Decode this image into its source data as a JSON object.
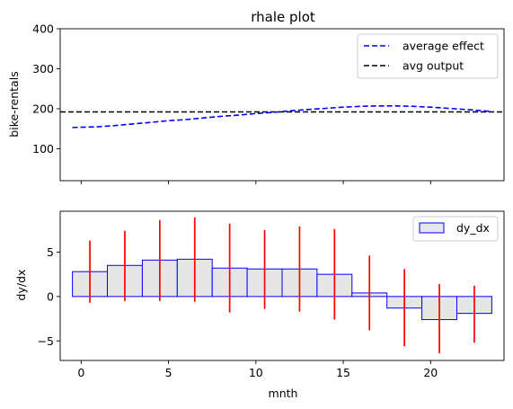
{
  "chart_data": [
    {
      "type": "line",
      "title": "rhale plot",
      "xlabel": "",
      "ylabel": "bike-rentals",
      "xlim": [
        -1.2,
        24.2
      ],
      "ylim": [
        20,
        400
      ],
      "xticks": [
        0,
        5,
        10,
        15,
        20
      ],
      "yticks": [
        100,
        200,
        300,
        400
      ],
      "show_xtick_labels": false,
      "grid": false,
      "legend": "top-right",
      "series": [
        {
          "name": "average effect",
          "style": "dashed",
          "color": "#0000ff",
          "x": [
            -0.5,
            1,
            2,
            3,
            4,
            5,
            6,
            7,
            8,
            9,
            10,
            11,
            12,
            13,
            14,
            15,
            16,
            17,
            18,
            19,
            20,
            21,
            22,
            23,
            23.5
          ],
          "y": [
            153,
            155,
            158,
            162,
            166,
            170,
            173,
            177,
            181,
            184,
            188,
            191,
            195,
            198,
            201,
            204,
            206,
            207,
            207,
            206,
            204,
            201,
            198,
            195,
            193
          ]
        },
        {
          "name": "avg output",
          "style": "dashed",
          "color": "#000000",
          "y_value": 192
        }
      ]
    },
    {
      "type": "bar",
      "title": "",
      "xlabel": "mnth",
      "ylabel": "dy/dx",
      "xlim": [
        -1.2,
        24.2
      ],
      "ylim": [
        -7.2,
        9.6
      ],
      "xticks": [
        0,
        5,
        10,
        15,
        20
      ],
      "yticks": [
        -5,
        0,
        5
      ],
      "grid": false,
      "legend": "top-right",
      "series": [
        {
          "name": "dy_dx",
          "fill": "#e6e6e6",
          "edge": "#0000ff",
          "bins": [
            {
              "x0": -0.5,
              "x1": 1.5,
              "value": 2.8
            },
            {
              "x0": 1.5,
              "x1": 3.5,
              "value": 3.5
            },
            {
              "x0": 3.5,
              "x1": 5.5,
              "value": 4.1
            },
            {
              "x0": 5.5,
              "x1": 7.5,
              "value": 4.2
            },
            {
              "x0": 7.5,
              "x1": 9.5,
              "value": 3.2
            },
            {
              "x0": 9.5,
              "x1": 11.5,
              "value": 3.1
            },
            {
              "x0": 11.5,
              "x1": 13.5,
              "value": 3.1
            },
            {
              "x0": 13.5,
              "x1": 15.5,
              "value": 2.5
            },
            {
              "x0": 15.5,
              "x1": 17.5,
              "value": 0.4
            },
            {
              "x0": 17.5,
              "x1": 19.5,
              "value": -1.3
            },
            {
              "x0": 19.5,
              "x1": 21.5,
              "value": -2.6
            },
            {
              "x0": 21.5,
              "x1": 23.5,
              "value": -1.9
            }
          ]
        }
      ],
      "error_bars": {
        "color": "#ff0000",
        "items": [
          {
            "x": 0.5,
            "low": -0.7,
            "high": 6.3
          },
          {
            "x": 2.5,
            "low": -0.5,
            "high": 7.4
          },
          {
            "x": 4.5,
            "low": -0.5,
            "high": 8.6
          },
          {
            "x": 6.5,
            "low": -0.6,
            "high": 8.9
          },
          {
            "x": 8.5,
            "low": -1.8,
            "high": 8.2
          },
          {
            "x": 10.5,
            "low": -1.4,
            "high": 7.5
          },
          {
            "x": 12.5,
            "low": -1.7,
            "high": 7.9
          },
          {
            "x": 14.5,
            "low": -2.6,
            "high": 7.6
          },
          {
            "x": 16.5,
            "low": -3.8,
            "high": 4.6
          },
          {
            "x": 18.5,
            "low": -5.6,
            "high": 3.1
          },
          {
            "x": 20.5,
            "low": -6.4,
            "high": 1.4
          },
          {
            "x": 22.5,
            "low": -5.2,
            "high": 1.2
          }
        ]
      }
    }
  ]
}
